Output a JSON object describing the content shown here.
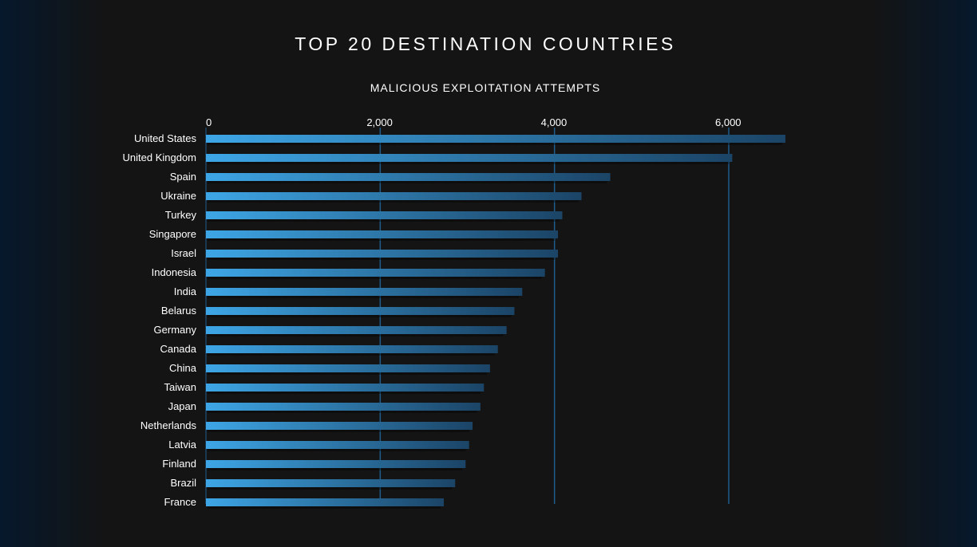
{
  "chart_data": {
    "type": "bar",
    "orientation": "horizontal",
    "title": "TOP 20 DESTINATION COUNTRIES",
    "subtitle": "MALICIOUS EXPLOITATION ATTEMPTS",
    "xlabel": "",
    "ylabel": "",
    "xlim": [
      0,
      7000
    ],
    "x_ticks": [
      0,
      2000,
      4000,
      6000
    ],
    "x_tick_labels": [
      "0",
      "2,000",
      "4,000",
      "6,000"
    ],
    "grid": true,
    "legend": "none",
    "categories": [
      "United States",
      "United Kingdom",
      "Spain",
      "Ukraine",
      "Turkey",
      "Singapore",
      "Israel",
      "Indonesia",
      "India",
      "Belarus",
      "Germany",
      "Canada",
      "China",
      "Taiwan",
      "Japan",
      "Netherlands",
      "Latvia",
      "Finland",
      "Brazil",
      "France"
    ],
    "values": [
      6650,
      6040,
      4640,
      4310,
      4090,
      4040,
      4040,
      3890,
      3630,
      3540,
      3450,
      3350,
      3260,
      3190,
      3150,
      3060,
      3020,
      2980,
      2860,
      2730
    ]
  },
  "colors": {
    "background": "#141414",
    "edge_glow": "#06182c",
    "bar_start": "#3ea6e6",
    "bar_end": "#1b4466",
    "gridline": "#1f5d8c",
    "text": "#ffffff"
  }
}
